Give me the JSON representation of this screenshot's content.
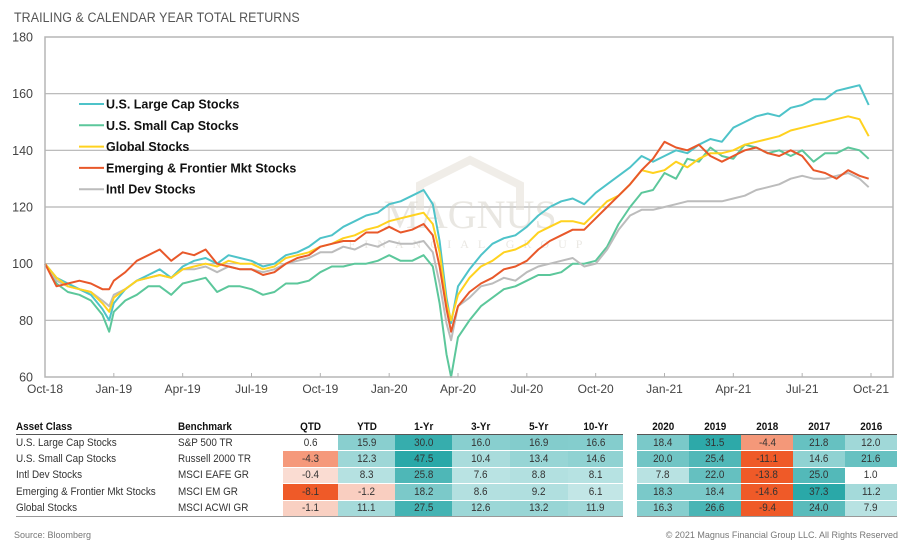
{
  "title": "TRAILING & CALENDAR YEAR TOTAL RETURNS",
  "watermark": {
    "main": "MAGNUS",
    "sub": "FINANCIAL GROUP"
  },
  "chart_data": {
    "type": "line",
    "title": "TRAILING & CALENDAR YEAR TOTAL RETURNS",
    "xlabel": "",
    "ylabel": "",
    "ylim": [
      60,
      180
    ],
    "yticks": [
      "60",
      "80",
      "100",
      "120",
      "140",
      "160",
      "180"
    ],
    "ytick_values": [
      60,
      80,
      100,
      120,
      140,
      160,
      180
    ],
    "xlim_months": [
      0,
      37.5
    ],
    "xticks": [
      "Oct-18",
      "Jan-19",
      "Apr-19",
      "Jul-19",
      "Oct-19",
      "Jan-20",
      "Apr-20",
      "Jul-20",
      "Oct-20",
      "Jan-21",
      "Apr-21",
      "Jul-21",
      "Oct-21"
    ],
    "xtick_months": [
      0,
      3,
      6,
      9,
      12,
      15,
      18,
      21,
      24,
      27,
      30,
      33,
      36
    ],
    "x_unit": "months since Oct-18",
    "grid": true,
    "legend_position": "top-left",
    "x": [
      0,
      0.5,
      1,
      1.5,
      2,
      2.5,
      2.8,
      3,
      3.5,
      4,
      4.5,
      5,
      5.5,
      6,
      6.5,
      7,
      7.5,
      8,
      8.5,
      9,
      9.5,
      10,
      10.5,
      11,
      11.5,
      12,
      12.5,
      13,
      13.5,
      14,
      14.5,
      15,
      15.5,
      16,
      16.5,
      16.9,
      17.2,
      17.5,
      17.7,
      18,
      18.5,
      19,
      19.5,
      20,
      20.5,
      21,
      21.5,
      22,
      22.5,
      23,
      23.5,
      24,
      24.5,
      25,
      25.5,
      26,
      26.5,
      27,
      27.5,
      28,
      28.5,
      29,
      29.5,
      30,
      30.5,
      31,
      31.5,
      32,
      32.5,
      33,
      33.5,
      34,
      34.5,
      35,
      35.5,
      35.9
    ],
    "series": [
      {
        "name": "U.S. Large Cap Stocks",
        "color": "#4ec3c9",
        "values": [
          100,
          95,
          93,
          91,
          89,
          84,
          80,
          86,
          91,
          94,
          96,
          98,
          95,
          99,
          101,
          102,
          100,
          103,
          102,
          101,
          99,
          100,
          103,
          104,
          106,
          109,
          110,
          113,
          115,
          117,
          118,
          121,
          122,
          124,
          126,
          121,
          108,
          88,
          79,
          92,
          98,
          103,
          107,
          109,
          110,
          113,
          117,
          120,
          122,
          123,
          121,
          125,
          128,
          131,
          134,
          138,
          136,
          138,
          140,
          139,
          142,
          144,
          143,
          148,
          150,
          152,
          153,
          152,
          155,
          156,
          158,
          158,
          161,
          162,
          163,
          156
        ]
      },
      {
        "name": "U.S. Small Cap Stocks",
        "color": "#5cc79b",
        "values": [
          100,
          93,
          90,
          89,
          87,
          82,
          76,
          83,
          87,
          89,
          92,
          92,
          89,
          93,
          94,
          95,
          90,
          92,
          92,
          91,
          89,
          90,
          93,
          93,
          94,
          97,
          99,
          99,
          100,
          100,
          101,
          103,
          101,
          101,
          103,
          99,
          86,
          68,
          60,
          74,
          80,
          85,
          88,
          91,
          92,
          94,
          96,
          96,
          97,
          100,
          100,
          101,
          106,
          114,
          120,
          125,
          126,
          132,
          130,
          137,
          136,
          141,
          138,
          137,
          142,
          141,
          139,
          140,
          138,
          140,
          136,
          139,
          139,
          141,
          140,
          137
        ]
      },
      {
        "name": "Global Stocks",
        "color": "#ffd21f",
        "values": [
          100,
          95,
          92,
          91,
          90,
          86,
          83,
          88,
          91,
          94,
          95,
          96,
          95,
          98,
          99,
          100,
          99,
          101,
          100,
          100,
          98,
          99,
          102,
          103,
          104,
          106,
          107,
          109,
          110,
          112,
          113,
          115,
          116,
          117,
          118,
          114,
          104,
          86,
          80,
          89,
          95,
          99,
          101,
          104,
          105,
          107,
          111,
          113,
          115,
          115,
          114,
          118,
          122,
          124,
          128,
          133,
          132,
          133,
          136,
          134,
          137,
          139,
          139,
          140,
          142,
          143,
          144,
          145,
          147,
          148,
          149,
          150,
          151,
          152,
          151,
          145
        ]
      },
      {
        "name": "Emerging & Frontier Mkt Stocks",
        "color": "#e8582a",
        "values": [
          100,
          92,
          93,
          94,
          93,
          91,
          91,
          94,
          97,
          101,
          103,
          105,
          101,
          104,
          103,
          105,
          100,
          99,
          98,
          98,
          96,
          97,
          100,
          102,
          103,
          106,
          107,
          108,
          108,
          111,
          111,
          113,
          111,
          112,
          114,
          110,
          99,
          84,
          76,
          85,
          90,
          93,
          95,
          98,
          99,
          101,
          105,
          108,
          110,
          112,
          112,
          116,
          120,
          124,
          128,
          133,
          137,
          143,
          141,
          140,
          142,
          138,
          136,
          138,
          140,
          141,
          139,
          138,
          140,
          138,
          133,
          132,
          130,
          133,
          131,
          130
        ]
      },
      {
        "name": "Intl Dev Stocks",
        "color": "#bcbcbc",
        "values": [
          100,
          94,
          92,
          91,
          90,
          87,
          85,
          89,
          91,
          94,
          95,
          96,
          95,
          98,
          98,
          99,
          97,
          99,
          98,
          98,
          97,
          98,
          100,
          101,
          102,
          104,
          104,
          106,
          105,
          107,
          106,
          108,
          107,
          107,
          108,
          104,
          93,
          79,
          73,
          85,
          88,
          92,
          93,
          95,
          94,
          97,
          99,
          100,
          101,
          102,
          99,
          100,
          105,
          112,
          117,
          119,
          119,
          120,
          121,
          122,
          122,
          122,
          122,
          123,
          124,
          126,
          127,
          128,
          130,
          131,
          130,
          130,
          131,
          132,
          130,
          127
        ]
      }
    ]
  },
  "table": {
    "trailing": {
      "headers": [
        "Asset Class",
        "Benchmark",
        "QTD",
        "YTD",
        "1-Yr",
        "3-Yr",
        "5-Yr",
        "10-Yr"
      ],
      "rows": [
        {
          "asset": "U.S. Large Cap Stocks",
          "benchmark": "S&P 500 TR",
          "values": [
            "0.6",
            "15.9",
            "30.0",
            "16.0",
            "16.9",
            "16.6"
          ]
        },
        {
          "asset": "U.S. Small Cap Stocks",
          "benchmark": "Russell 2000 TR",
          "values": [
            "-4.3",
            "12.3",
            "47.5",
            "10.4",
            "13.4",
            "14.6"
          ]
        },
        {
          "asset": "Intl Dev Stocks",
          "benchmark": "MSCI EAFE GR",
          "values": [
            "-0.4",
            "8.3",
            "25.8",
            "7.6",
            "8.8",
            "8.1"
          ]
        },
        {
          "asset": "Emerging & Frontier Mkt Stocks",
          "benchmark": "MSCI EM GR",
          "values": [
            "-8.1",
            "-1.2",
            "18.2",
            "8.6",
            "9.2",
            "6.1"
          ]
        },
        {
          "asset": "Global Stocks",
          "benchmark": "MSCI ACWI GR",
          "values": [
            "-1.1",
            "11.1",
            "27.5",
            "12.6",
            "13.2",
            "11.9"
          ]
        }
      ]
    },
    "calendar": {
      "headers": [
        "2020",
        "2019",
        "2018",
        "2017",
        "2016"
      ],
      "rows": [
        [
          "18.4",
          "31.5",
          "-4.4",
          "21.8",
          "12.0"
        ],
        [
          "20.0",
          "25.4",
          "-11.1",
          "14.6",
          "21.6"
        ],
        [
          "7.8",
          "22.0",
          "-13.8",
          "25.0",
          "1.0"
        ],
        [
          "18.3",
          "18.4",
          "-14.6",
          "37.3",
          "11.2"
        ],
        [
          "16.3",
          "26.6",
          "-9.4",
          "24.0",
          "7.9"
        ]
      ]
    },
    "colors": {
      "teal_dark": "#2aa8a8",
      "teal_light": "#e6f5f5",
      "neg_dark": "#ef5a28",
      "neg_light": "#fbe3db"
    }
  },
  "footer": {
    "source": "Source: Bloomberg",
    "copyright": "© 2021 Magnus Financial Group LLC. All Rights Reserved"
  }
}
